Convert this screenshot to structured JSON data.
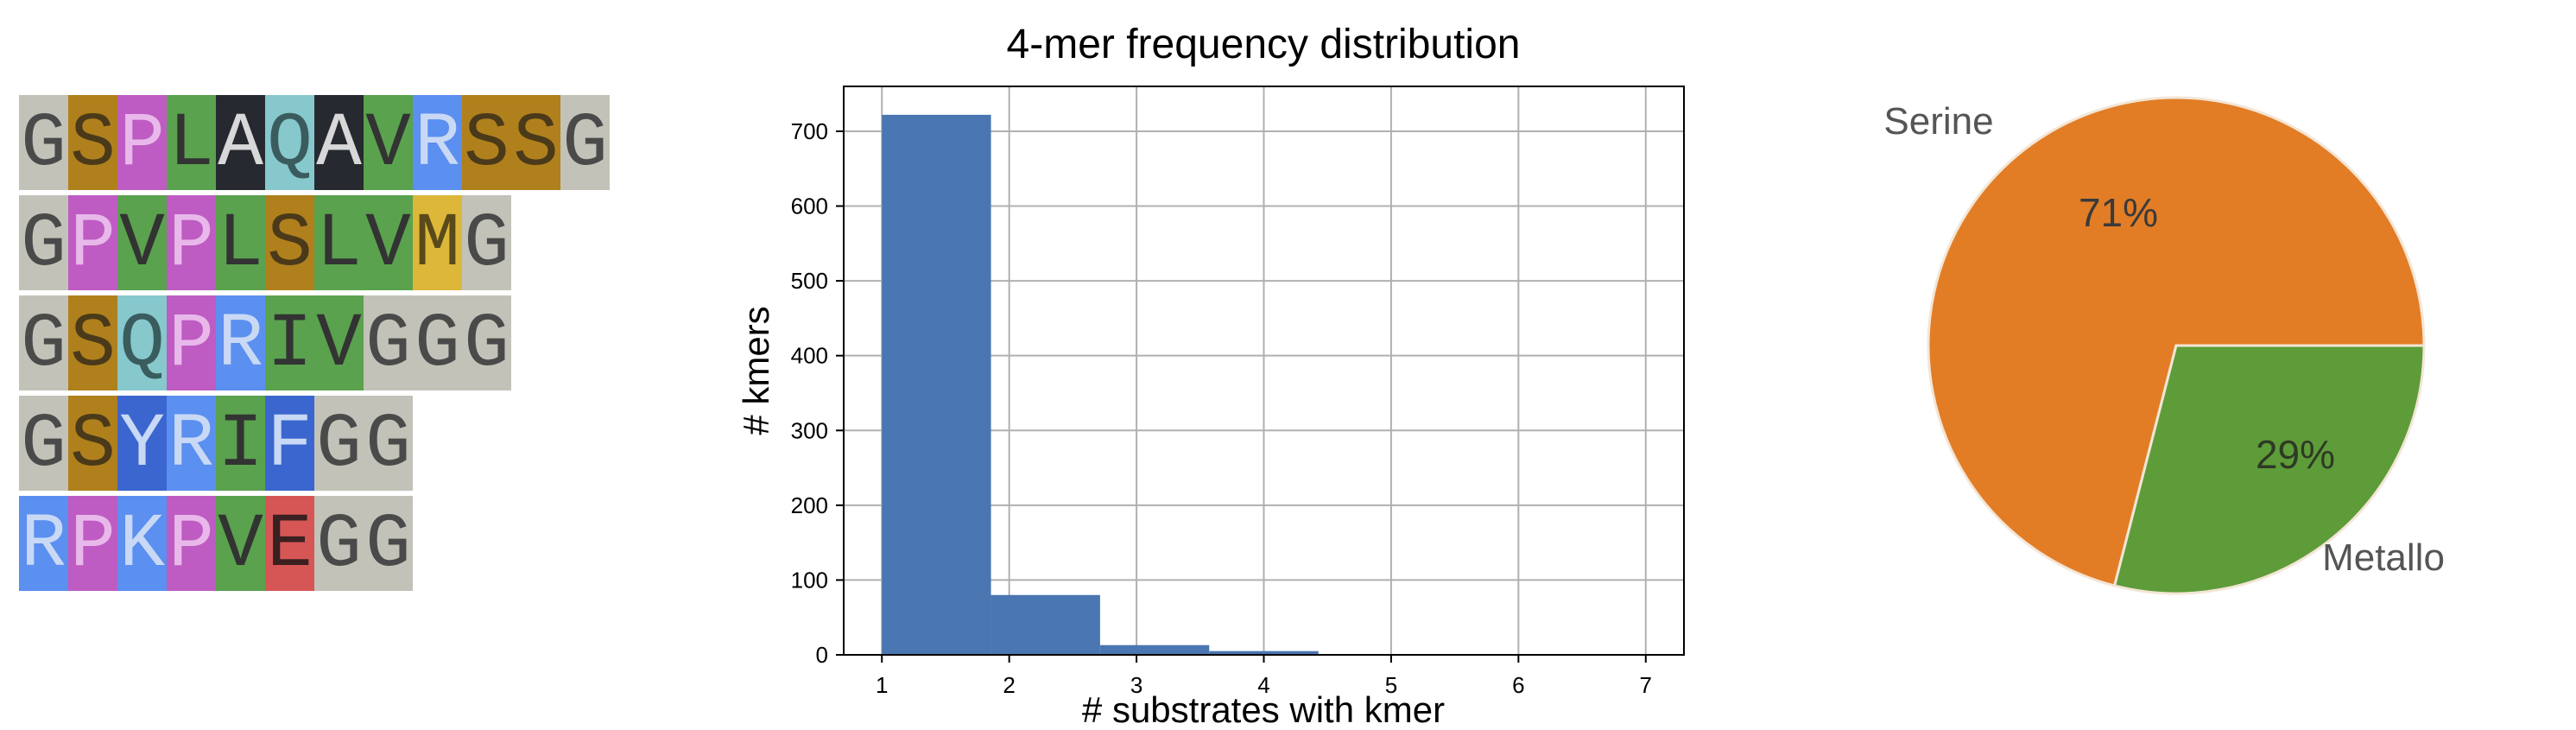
{
  "colors": {
    "G": "#c3c2b8",
    "S": "#b0801c",
    "P": "#be5cc3",
    "L": "#5aa24e",
    "A": "#262a30",
    "Q": "#86c8cc",
    "V": "#5aa24e",
    "R": "#5b8ff0",
    "M": "#dcb73a",
    "I": "#5aa24e",
    "Y": "#3b66cf",
    "F": "#3b66cf",
    "K": "#5b8ff0",
    "E": "#d65656"
  },
  "text_colors": {
    "G": "#4a4a4a",
    "S": "#4a3a1a",
    "P": "#e9b8ea",
    "L": "#333333",
    "A": "#d8d8d8",
    "Q": "#3a5c5e",
    "V": "#333333",
    "R": "#c9d9f5",
    "M": "#5a4a1a",
    "I": "#333333",
    "Y": "#c9d9f5",
    "F": "#c9d9f5",
    "K": "#c9d9f5",
    "E": "#3a2020"
  },
  "sequences": [
    "GSPLAQAVRSSG",
    "GPVPLSLVMG",
    "GSQPRIVGGG",
    "GSYRIFGG",
    "RPKPVEGG"
  ],
  "chart_data": [
    {
      "type": "bar",
      "title": "4-mer frequency distribution",
      "xlabel": "# substrates with kmer",
      "ylabel": "# kmers",
      "bins": [
        [
          1.0,
          1.857
        ],
        [
          1.857,
          2.714
        ],
        [
          2.714,
          3.571
        ],
        [
          3.571,
          4.429
        ],
        [
          4.429,
          5.286
        ],
        [
          5.286,
          6.143
        ],
        [
          6.143,
          7.0
        ]
      ],
      "values": [
        722,
        80,
        13,
        5,
        1,
        1,
        1
      ],
      "xticks": [
        1,
        2,
        3,
        4,
        5,
        6,
        7
      ],
      "yticks": [
        0,
        100,
        200,
        300,
        400,
        500,
        600,
        700
      ],
      "xlim": [
        0.7,
        7.3
      ],
      "ylim": [
        0,
        760
      ],
      "grid": true,
      "bar_color": "#4a76b2"
    },
    {
      "type": "pie",
      "labels": [
        "Serine",
        "Metallo"
      ],
      "values": [
        71,
        29
      ],
      "pct_labels": [
        "71%",
        "29%"
      ],
      "colors": [
        "#e27d26",
        "#5e9c3a"
      ]
    }
  ]
}
